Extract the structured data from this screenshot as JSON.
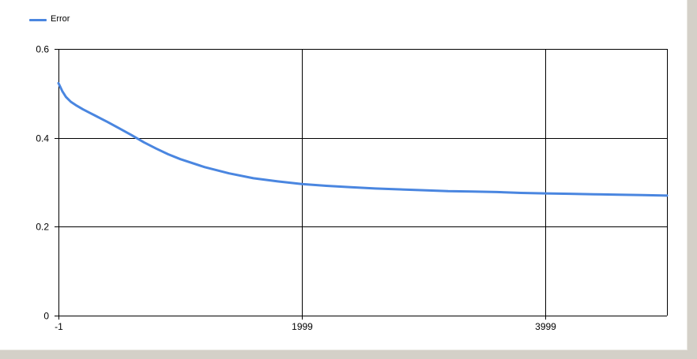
{
  "chart_data": {
    "type": "line",
    "title": "",
    "xlabel": "",
    "ylabel": "",
    "xlim": [
      -1,
      4999
    ],
    "ylim": [
      0,
      0.6
    ],
    "x_ticks": [
      -1,
      1999,
      3999
    ],
    "x_tick_labels": [
      "-1",
      "1999",
      "3999"
    ],
    "y_ticks": [
      0,
      0.2,
      0.4,
      0.6
    ],
    "y_tick_labels": [
      "0",
      "0.2",
      "0.4",
      "0.6"
    ],
    "grid": true,
    "legend": {
      "position": "top-left",
      "entries": [
        "Error"
      ]
    },
    "series": [
      {
        "name": "Error",
        "color": "#4a86e0",
        "x": [
          -1,
          30,
          60,
          100,
          150,
          200,
          250,
          300,
          400,
          500,
          600,
          700,
          800,
          900,
          1000,
          1200,
          1400,
          1600,
          1800,
          1999,
          2200,
          2400,
          2600,
          2800,
          3000,
          3200,
          3400,
          3600,
          3800,
          3999,
          4200,
          4400,
          4600,
          4800,
          4999
        ],
        "values": [
          0.523,
          0.505,
          0.492,
          0.481,
          0.472,
          0.464,
          0.457,
          0.45,
          0.436,
          0.421,
          0.406,
          0.39,
          0.376,
          0.363,
          0.352,
          0.334,
          0.32,
          0.309,
          0.302,
          0.296,
          0.292,
          0.289,
          0.286,
          0.284,
          0.282,
          0.28,
          0.279,
          0.278,
          0.276,
          0.275,
          0.274,
          0.273,
          0.272,
          0.271,
          0.27
        ]
      }
    ]
  }
}
